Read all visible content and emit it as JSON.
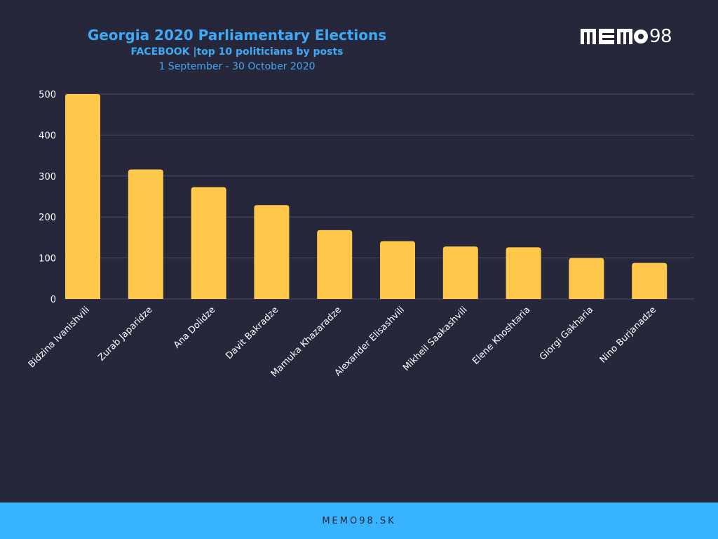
{
  "header": {
    "title": "Georgia 2020 Parliamentary Elections",
    "subtitle": "FACEBOOK |top 10 politicians by posts",
    "date_range": "1 September - 30 October 2020"
  },
  "logo": {
    "text": "98",
    "logo_label": "MEMO98"
  },
  "footer": {
    "text": "MEMO98.SK"
  },
  "colors": {
    "background": "#26273b",
    "bar": "#ffc84a",
    "accent": "#3fa9f5",
    "footer": "#37b3ff",
    "grid": "#4a4b60"
  },
  "chart_data": {
    "type": "bar",
    "title": "Georgia 2020 Parliamentary Elections",
    "subtitle": "FACEBOOK |top 10 politicians by posts",
    "categories": [
      "Bidzina Ivanishvili",
      "Zurab Japaridze",
      "Ana Dolidze",
      "Davit Bakradze",
      "Mamuka Khazaradze",
      "Alexander Elisashvili",
      "Mikheil Saakashvili",
      "Elene Khoshtaria",
      "Giorgi Gakharia",
      "Nino Burjanadze"
    ],
    "values": [
      500,
      316,
      273,
      229,
      168,
      141,
      128,
      126,
      100,
      88
    ],
    "yticks": [
      0,
      100,
      200,
      300,
      400,
      500
    ],
    "ylim": [
      0,
      500
    ],
    "xlabel": "",
    "ylabel": "",
    "grid": true,
    "legend": "none"
  }
}
